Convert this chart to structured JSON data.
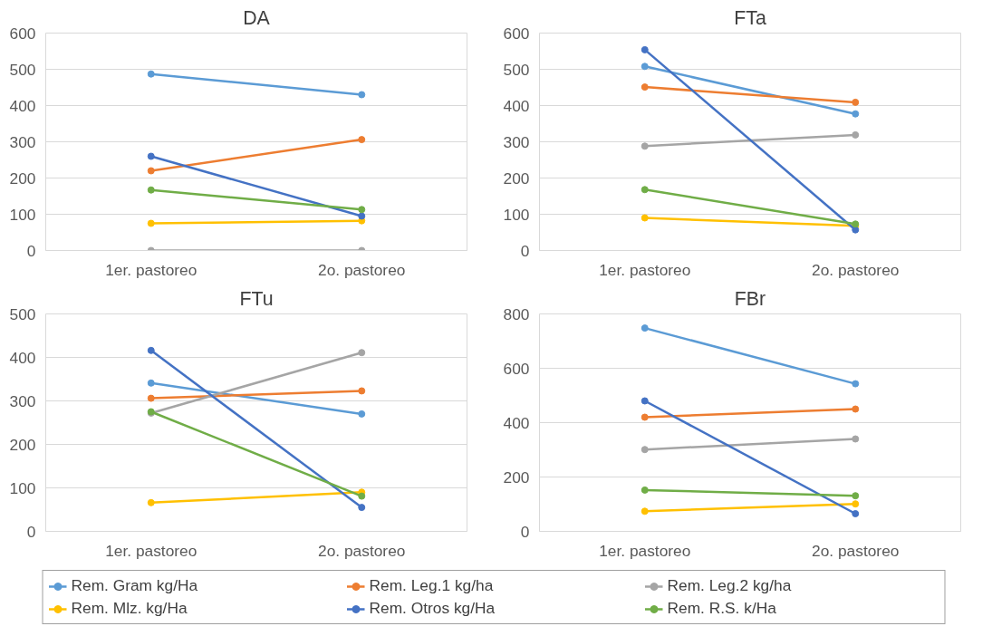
{
  "chart_data": [
    {
      "type": "line",
      "title": "DA",
      "categories": [
        "1er. pastoreo",
        "2o. pastoreo"
      ],
      "ylim": [
        0,
        600
      ],
      "yticks": [
        0,
        100,
        200,
        300,
        400,
        500,
        600
      ],
      "grid": "y",
      "marker": "circle",
      "legend": false,
      "series": [
        {
          "color": "#5b9bd5",
          "values": [
            487,
            430
          ]
        },
        {
          "color": "#ed7d31",
          "values": [
            220,
            306
          ]
        },
        {
          "color": "#a5a5a5",
          "values": [
            0,
            0
          ]
        },
        {
          "color": "#ffc000",
          "values": [
            75,
            82
          ]
        },
        {
          "color": "#4472c4",
          "values": [
            260,
            95
          ]
        },
        {
          "color": "#70ad47",
          "values": [
            167,
            113
          ]
        }
      ]
    },
    {
      "type": "line",
      "title": "FTa",
      "categories": [
        "1er. pastoreo",
        "2o. pastoreo"
      ],
      "ylim": [
        0,
        600
      ],
      "yticks": [
        0,
        100,
        200,
        300,
        400,
        500,
        600
      ],
      "grid": "y",
      "marker": "circle",
      "legend": false,
      "series": [
        {
          "color": "#5b9bd5",
          "values": [
            508,
            377
          ]
        },
        {
          "color": "#ed7d31",
          "values": [
            451,
            409
          ]
        },
        {
          "color": "#a5a5a5",
          "values": [
            288,
            319
          ]
        },
        {
          "color": "#ffc000",
          "values": [
            90,
            68
          ]
        },
        {
          "color": "#4472c4",
          "values": [
            554,
            57
          ]
        },
        {
          "color": "#70ad47",
          "values": [
            168,
            73
          ]
        }
      ]
    },
    {
      "type": "line",
      "title": "FTu",
      "categories": [
        "1er. pastoreo",
        "2o. pastoreo"
      ],
      "ylim": [
        0,
        500
      ],
      "yticks": [
        0,
        100,
        200,
        300,
        400,
        500
      ],
      "grid": "y",
      "marker": "circle",
      "legend": false,
      "series": [
        {
          "color": "#5b9bd5",
          "values": [
            341,
            270
          ]
        },
        {
          "color": "#ed7d31",
          "values": [
            306,
            323
          ]
        },
        {
          "color": "#a5a5a5",
          "values": [
            272,
            411
          ]
        },
        {
          "color": "#ffc000",
          "values": [
            66,
            90
          ]
        },
        {
          "color": "#4472c4",
          "values": [
            416,
            55
          ]
        },
        {
          "color": "#70ad47",
          "values": [
            275,
            81
          ]
        }
      ]
    },
    {
      "type": "line",
      "title": "FBr",
      "categories": [
        "1er. pastoreo",
        "2o. pastoreo"
      ],
      "ylim": [
        0,
        800
      ],
      "yticks": [
        0,
        200,
        400,
        600,
        800
      ],
      "grid": "y",
      "marker": "circle",
      "legend": "bottom",
      "series": [
        {
          "name": "Rem. Gram kg/Ha",
          "color": "#5b9bd5",
          "values": [
            748,
            543
          ]
        },
        {
          "name": "Rem. Leg.1 kg/ha",
          "color": "#ed7d31",
          "values": [
            420,
            450
          ]
        },
        {
          "name": "Rem. Leg.2 kg/ha",
          "color": "#a5a5a5",
          "values": [
            301,
            340
          ]
        },
        {
          "name": "Rem. Mlz. kg/Ha",
          "color": "#ffc000",
          "values": [
            74,
            101
          ]
        },
        {
          "name": "Rem. Otros kg/Ha",
          "color": "#4472c4",
          "values": [
            480,
            65
          ]
        },
        {
          "name": "Rem. R.S. k/Ha",
          "color": "#70ad47",
          "values": [
            152,
            131
          ]
        }
      ]
    }
  ]
}
